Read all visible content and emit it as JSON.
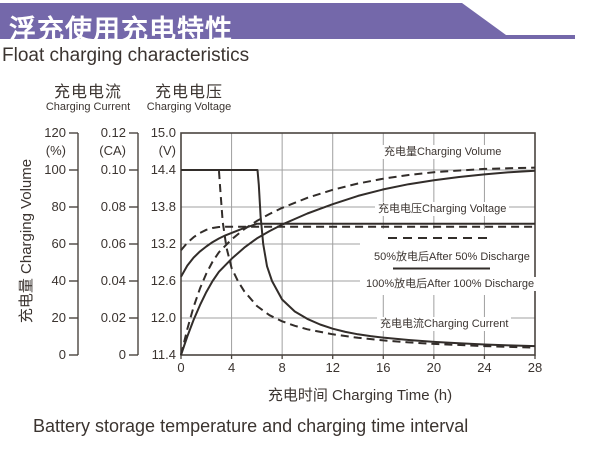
{
  "banner": {
    "title": "浮充使用充电特性",
    "bg_color": "#7468aa"
  },
  "subtitle": "Float charging characteristics",
  "caption": "Battery storage temperature and charging time interval",
  "colors": {
    "text": "#3b3430",
    "curve": "#322d2a",
    "grid": "#a0a0a0",
    "frame": "#4a443f",
    "label_bg": "#ffffff"
  },
  "chart_data": {
    "type": "line",
    "xlabel": "充电时间 Charging Time (h)",
    "ylabel": "充电量 Charging Volume",
    "x_axis": {
      "range": [
        0,
        28
      ],
      "ticks": [
        0,
        4,
        8,
        12,
        16,
        20,
        24,
        28
      ],
      "grid": true
    },
    "axes": {
      "volume": {
        "title_zh": "充电量",
        "title_en": "Charging Volume",
        "unit": "(%)",
        "range": [
          0,
          120
        ],
        "ticks": [
          "120",
          "100",
          "80",
          "60",
          "40",
          "20",
          "0"
        ]
      },
      "current": {
        "title_zh": "充电电流",
        "title_en": "Charging Current",
        "unit": "(CA)",
        "range": [
          0,
          0.12
        ],
        "ticks": [
          "0.12",
          "0.10",
          "0.08",
          "0.06",
          "0.04",
          "0.02",
          "0"
        ]
      },
      "voltage": {
        "title_zh": "充电电压",
        "title_en": "Charging Voltage",
        "unit": "(V)",
        "range": [
          11.4,
          15.0
        ],
        "ticks": [
          "15.0",
          "14.4",
          "13.8",
          "13.2",
          "12.6",
          "12.0",
          "11.4"
        ]
      }
    },
    "labels": {
      "volume": "充电量Charging Volume",
      "voltage": "充电电压Charging Voltage",
      "current": "充电电流Charging Current"
    },
    "legend": [
      {
        "label": "50%放电后After 50% Discharge",
        "style": "dashed"
      },
      {
        "label": "100%放电后After 100% Discharge",
        "style": "solid"
      }
    ],
    "series": [
      {
        "name": "charging-volume-after-100-discharge",
        "axis": "volume",
        "style": "solid",
        "points": [
          [
            0,
            0
          ],
          [
            0.5,
            10
          ],
          [
            1,
            19
          ],
          [
            1.5,
            27
          ],
          [
            2,
            34
          ],
          [
            2.5,
            40
          ],
          [
            3,
            45
          ],
          [
            4,
            52
          ],
          [
            5,
            58
          ],
          [
            6,
            63
          ],
          [
            7,
            67
          ],
          [
            8,
            70.5
          ],
          [
            9,
            73.5
          ],
          [
            10,
            76.5
          ],
          [
            11,
            79
          ],
          [
            12,
            81.5
          ],
          [
            14,
            86
          ],
          [
            16,
            89.5
          ],
          [
            18,
            92.3
          ],
          [
            20,
            94.5
          ],
          [
            22,
            96.2
          ],
          [
            24,
            97.6
          ],
          [
            26,
            98.8
          ],
          [
            28,
            99.6
          ]
        ]
      },
      {
        "name": "charging-volume-after-50-discharge",
        "axis": "volume",
        "style": "dashed",
        "points": [
          [
            0,
            0
          ],
          [
            0.5,
            14
          ],
          [
            1,
            26
          ],
          [
            1.5,
            36
          ],
          [
            2,
            44
          ],
          [
            2.5,
            50.5
          ],
          [
            3,
            55.5
          ],
          [
            4,
            62.5
          ],
          [
            5,
            68
          ],
          [
            6,
            72.5
          ],
          [
            7,
            76.2
          ],
          [
            8,
            79.5
          ],
          [
            10,
            85
          ],
          [
            12,
            89.3
          ],
          [
            14,
            92.7
          ],
          [
            16,
            95.3
          ],
          [
            18,
            97.3
          ],
          [
            20,
            98.8
          ],
          [
            24,
            100.6
          ],
          [
            28,
            101.3
          ]
        ]
      },
      {
        "name": "charging-voltage-after-100-discharge",
        "axis": "voltage",
        "style": "solid",
        "points": [
          [
            0,
            12.67
          ],
          [
            0.5,
            12.85
          ],
          [
            1,
            12.98
          ],
          [
            1.5,
            13.08
          ],
          [
            2,
            13.16
          ],
          [
            2.5,
            13.23
          ],
          [
            3,
            13.29
          ],
          [
            3.5,
            13.34
          ],
          [
            4,
            13.38
          ],
          [
            4.5,
            13.42
          ],
          [
            5,
            13.46
          ],
          [
            5.5,
            13.49
          ],
          [
            6,
            13.53
          ],
          [
            28,
            13.53
          ]
        ]
      },
      {
        "name": "charging-voltage-after-50-discharge",
        "axis": "voltage",
        "style": "dashed",
        "points": [
          [
            0,
            13.1
          ],
          [
            0.5,
            13.22
          ],
          [
            1,
            13.31
          ],
          [
            1.5,
            13.38
          ],
          [
            2,
            13.43
          ],
          [
            2.5,
            13.46
          ],
          [
            3,
            13.475
          ],
          [
            3.5,
            13.48
          ],
          [
            28,
            13.48
          ]
        ]
      },
      {
        "name": "charging-current-after-100-discharge",
        "axis": "current",
        "style": "solid",
        "points": [
          [
            0,
            0.1
          ],
          [
            6.05,
            0.1
          ],
          [
            6.15,
            0.092
          ],
          [
            6.3,
            0.075
          ],
          [
            6.5,
            0.06
          ],
          [
            6.8,
            0.048
          ],
          [
            7.2,
            0.04
          ],
          [
            8,
            0.03
          ],
          [
            9,
            0.0235
          ],
          [
            10,
            0.0195
          ],
          [
            11,
            0.0165
          ],
          [
            12,
            0.0142
          ],
          [
            13,
            0.0125
          ],
          [
            14,
            0.0112
          ],
          [
            15,
            0.0102
          ],
          [
            16,
            0.0094
          ],
          [
            18,
            0.0081
          ],
          [
            20,
            0.0071
          ],
          [
            22,
            0.0063
          ],
          [
            24,
            0.0057
          ],
          [
            26,
            0.0052
          ],
          [
            28,
            0.0048
          ]
        ]
      },
      {
        "name": "charging-current-after-50-discharge",
        "axis": "current",
        "style": "dashed",
        "points": [
          [
            0,
            0.1
          ],
          [
            3.0,
            0.1
          ],
          [
            3.1,
            0.09
          ],
          [
            3.3,
            0.072
          ],
          [
            3.6,
            0.058
          ],
          [
            4,
            0.047
          ],
          [
            4.5,
            0.04
          ],
          [
            5,
            0.0345
          ],
          [
            6,
            0.0265
          ],
          [
            7,
            0.0215
          ],
          [
            8,
            0.0182
          ],
          [
            9,
            0.0158
          ],
          [
            10,
            0.0139
          ],
          [
            12,
            0.0112
          ],
          [
            14,
            0.0093
          ],
          [
            16,
            0.0079
          ],
          [
            18,
            0.0068
          ],
          [
            20,
            0.006
          ],
          [
            24,
            0.0048
          ],
          [
            28,
            0.004
          ]
        ]
      }
    ]
  }
}
